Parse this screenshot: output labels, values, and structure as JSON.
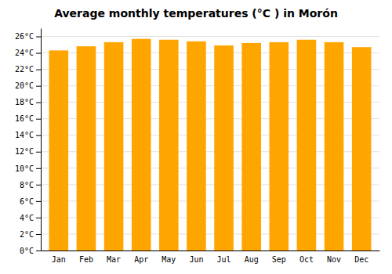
{
  "chart_data": {
    "type": "bar",
    "title": "Average monthly temperatures (°C ) in Morón",
    "categories": [
      "Jan",
      "Feb",
      "Mar",
      "Apr",
      "May",
      "Jun",
      "Jul",
      "Aug",
      "Sep",
      "Oct",
      "Nov",
      "Dec"
    ],
    "values": [
      24.3,
      24.8,
      25.3,
      25.7,
      25.6,
      25.4,
      24.9,
      25.2,
      25.3,
      25.6,
      25.3,
      24.7
    ],
    "color": "#FFA500",
    "ylim": [
      0,
      27
    ],
    "yticks": [
      {
        "value": 0,
        "label": "0°C"
      },
      {
        "value": 2,
        "label": "2°C"
      },
      {
        "value": 4,
        "label": "4°C"
      },
      {
        "value": 6,
        "label": "6°C"
      },
      {
        "value": 8,
        "label": "8°C"
      },
      {
        "value": 10,
        "label": "10°C"
      },
      {
        "value": 12,
        "label": "12°C"
      },
      {
        "value": 14,
        "label": "14°C"
      },
      {
        "value": 16,
        "label": "16°C"
      },
      {
        "value": 18,
        "label": "18°C"
      },
      {
        "value": 20,
        "label": "20°C"
      },
      {
        "value": 22,
        "label": "22°C"
      },
      {
        "value": 24,
        "label": "24°C"
      },
      {
        "value": 26,
        "label": "26°C"
      }
    ],
    "grid": true
  }
}
